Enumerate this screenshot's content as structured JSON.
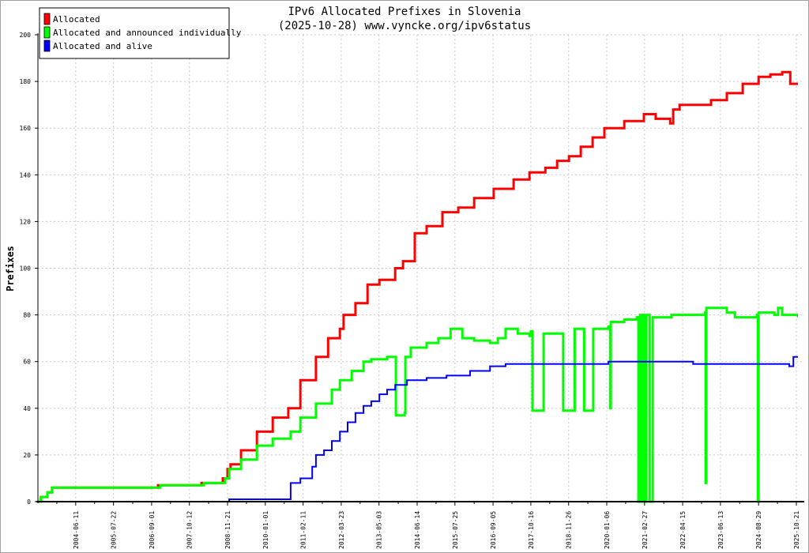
{
  "chart_data": {
    "type": "line",
    "title": "IPv6 Allocated Prefixes in Slovenia",
    "subtitle": "(2025-10-28) www.vyncke.org/ipv6status",
    "xlabel": "",
    "ylabel": "Prefixes",
    "xlim": [
      2003.32,
      2025.8
    ],
    "ylim": [
      0,
      200
    ],
    "yticks": [
      0,
      20,
      40,
      60,
      80,
      100,
      120,
      140,
      160,
      180,
      200
    ],
    "grid": true,
    "legend_position": "top-left",
    "xticks": [
      {
        "x": 2004.44,
        "label": "2004-06-11"
      },
      {
        "x": 2005.56,
        "label": "2005-07-22"
      },
      {
        "x": 2006.69,
        "label": "2006-09-01"
      },
      {
        "x": 2007.81,
        "label": "2007-10-12"
      },
      {
        "x": 2008.94,
        "label": "2008-11-21"
      },
      {
        "x": 2010.06,
        "label": "2010-01-01"
      },
      {
        "x": 2011.18,
        "label": "2011-02-11"
      },
      {
        "x": 2012.31,
        "label": "2012-03-23"
      },
      {
        "x": 2013.43,
        "label": "2013-05-03"
      },
      {
        "x": 2014.56,
        "label": "2014-06-14"
      },
      {
        "x": 2015.68,
        "label": "2015-07-25"
      },
      {
        "x": 2016.81,
        "label": "2016-09-05"
      },
      {
        "x": 2017.93,
        "label": "2017-10-16"
      },
      {
        "x": 2019.05,
        "label": "2018-11-26"
      },
      {
        "x": 2020.18,
        "label": "2020-01-06"
      },
      {
        "x": 2021.3,
        "label": "2021-02-27"
      },
      {
        "x": 2022.43,
        "label": "2022-04-15"
      },
      {
        "x": 2023.55,
        "label": "2023-06-13"
      },
      {
        "x": 2024.68,
        "label": "2024-08-29"
      },
      {
        "x": 2025.8,
        "label": "2025-10-21"
      }
    ],
    "series": [
      {
        "name": "Allocated",
        "color": "#ff0000",
        "width": 3,
        "points": [
          [
            2003.32,
            0
          ],
          [
            2003.41,
            2
          ],
          [
            2003.6,
            4
          ],
          [
            2003.74,
            6
          ],
          [
            2006.88,
            7
          ],
          [
            2008.17,
            8
          ],
          [
            2008.8,
            10
          ],
          [
            2008.94,
            14
          ],
          [
            2009.03,
            16
          ],
          [
            2009.34,
            22
          ],
          [
            2009.81,
            30
          ],
          [
            2010.28,
            36
          ],
          [
            2010.74,
            40
          ],
          [
            2011.1,
            52
          ],
          [
            2011.56,
            62
          ],
          [
            2011.92,
            70
          ],
          [
            2012.27,
            74
          ],
          [
            2012.38,
            80
          ],
          [
            2012.73,
            85
          ],
          [
            2013.09,
            93
          ],
          [
            2013.44,
            95
          ],
          [
            2013.91,
            100
          ],
          [
            2014.14,
            103
          ],
          [
            2014.49,
            115
          ],
          [
            2014.84,
            118
          ],
          [
            2015.31,
            124
          ],
          [
            2015.78,
            126
          ],
          [
            2016.25,
            130
          ],
          [
            2016.83,
            134
          ],
          [
            2017.42,
            138
          ],
          [
            2017.89,
            141
          ],
          [
            2018.36,
            143
          ],
          [
            2018.71,
            146
          ],
          [
            2019.06,
            148
          ],
          [
            2019.41,
            152
          ],
          [
            2019.76,
            156
          ],
          [
            2020.11,
            160
          ],
          [
            2020.7,
            163
          ],
          [
            2021.28,
            166
          ],
          [
            2021.63,
            164
          ],
          [
            2022.06,
            162
          ],
          [
            2022.15,
            168
          ],
          [
            2022.34,
            170
          ],
          [
            2022.81,
            170
          ],
          [
            2023.27,
            172
          ],
          [
            2023.74,
            175
          ],
          [
            2024.21,
            179
          ],
          [
            2024.68,
            182
          ],
          [
            2025.03,
            183
          ],
          [
            2025.38,
            184
          ],
          [
            2025.62,
            179
          ],
          [
            2025.85,
            179
          ]
        ]
      },
      {
        "name": "Allocated and announced individually",
        "color": "#00ff00",
        "width": 3,
        "points": [
          [
            2003.32,
            0
          ],
          [
            2003.41,
            2
          ],
          [
            2003.6,
            4
          ],
          [
            2003.74,
            6
          ],
          [
            2006.88,
            6
          ],
          [
            2006.95,
            7
          ],
          [
            2008.17,
            7
          ],
          [
            2008.24,
            8
          ],
          [
            2008.8,
            8
          ],
          [
            2008.87,
            10
          ],
          [
            2008.99,
            14
          ],
          [
            2009.34,
            18
          ],
          [
            2009.81,
            24
          ],
          [
            2010.28,
            27
          ],
          [
            2010.81,
            30
          ],
          [
            2011.1,
            36
          ],
          [
            2011.56,
            42
          ],
          [
            2012.03,
            48
          ],
          [
            2012.27,
            52
          ],
          [
            2012.62,
            56
          ],
          [
            2012.97,
            60
          ],
          [
            2013.2,
            61
          ],
          [
            2013.67,
            62
          ],
          [
            2013.91,
            62
          ],
          [
            2013.93,
            37
          ],
          [
            2014.19,
            38
          ],
          [
            2014.21,
            62
          ],
          [
            2014.37,
            66
          ],
          [
            2014.84,
            68
          ],
          [
            2015.19,
            70
          ],
          [
            2015.55,
            74
          ],
          [
            2015.9,
            70
          ],
          [
            2016.25,
            69
          ],
          [
            2016.72,
            68
          ],
          [
            2016.95,
            70
          ],
          [
            2017.18,
            74
          ],
          [
            2017.54,
            72
          ],
          [
            2017.89,
            71
          ],
          [
            2017.93,
            73
          ],
          [
            2017.98,
            39
          ],
          [
            2018.26,
            39
          ],
          [
            2018.31,
            72
          ],
          [
            2018.87,
            72
          ],
          [
            2018.89,
            39
          ],
          [
            2019.2,
            39
          ],
          [
            2019.23,
            74
          ],
          [
            2019.48,
            74
          ],
          [
            2019.51,
            39
          ],
          [
            2019.76,
            39
          ],
          [
            2019.78,
            74
          ],
          [
            2020.23,
            75
          ],
          [
            2020.28,
            40
          ],
          [
            2020.3,
            77
          ],
          [
            2020.7,
            78
          ],
          [
            2021.07,
            79
          ],
          [
            2021.12,
            0
          ],
          [
            2021.17,
            80
          ],
          [
            2021.21,
            0
          ],
          [
            2021.26,
            80
          ],
          [
            2021.31,
            0
          ],
          [
            2021.35,
            80
          ],
          [
            2021.42,
            80
          ],
          [
            2021.45,
            0
          ],
          [
            2021.52,
            0
          ],
          [
            2021.54,
            79
          ],
          [
            2022.1,
            80
          ],
          [
            2022.57,
            80
          ],
          [
            2023.09,
            81
          ],
          [
            2023.11,
            8
          ],
          [
            2023.13,
            83
          ],
          [
            2023.74,
            81
          ],
          [
            2023.98,
            79
          ],
          [
            2024.63,
            80
          ],
          [
            2024.66,
            0
          ],
          [
            2024.68,
            81
          ],
          [
            2025.15,
            80
          ],
          [
            2025.26,
            83
          ],
          [
            2025.38,
            80
          ],
          [
            2025.85,
            79
          ]
        ]
      },
      {
        "name": "Allocated and alive",
        "color": "#0000ff",
        "width": 2,
        "points": [
          [
            2003.32,
            0
          ],
          [
            2008.94,
            0
          ],
          [
            2008.99,
            1
          ],
          [
            2010.77,
            1
          ],
          [
            2010.81,
            8
          ],
          [
            2011.1,
            10
          ],
          [
            2011.45,
            15
          ],
          [
            2011.56,
            20
          ],
          [
            2011.8,
            22
          ],
          [
            2012.03,
            26
          ],
          [
            2012.27,
            30
          ],
          [
            2012.5,
            34
          ],
          [
            2012.73,
            38
          ],
          [
            2012.97,
            41
          ],
          [
            2013.2,
            43
          ],
          [
            2013.44,
            46
          ],
          [
            2013.67,
            48
          ],
          [
            2013.91,
            50
          ],
          [
            2014.26,
            52
          ],
          [
            2014.84,
            53
          ],
          [
            2015.43,
            54
          ],
          [
            2016.13,
            56
          ],
          [
            2016.72,
            58
          ],
          [
            2017.18,
            59
          ],
          [
            2019.99,
            59
          ],
          [
            2020.23,
            60
          ],
          [
            2022.69,
            60
          ],
          [
            2022.74,
            59
          ],
          [
            2025.57,
            59
          ],
          [
            2025.59,
            58
          ],
          [
            2025.69,
            58
          ],
          [
            2025.71,
            62
          ],
          [
            2025.85,
            62
          ]
        ]
      }
    ]
  }
}
